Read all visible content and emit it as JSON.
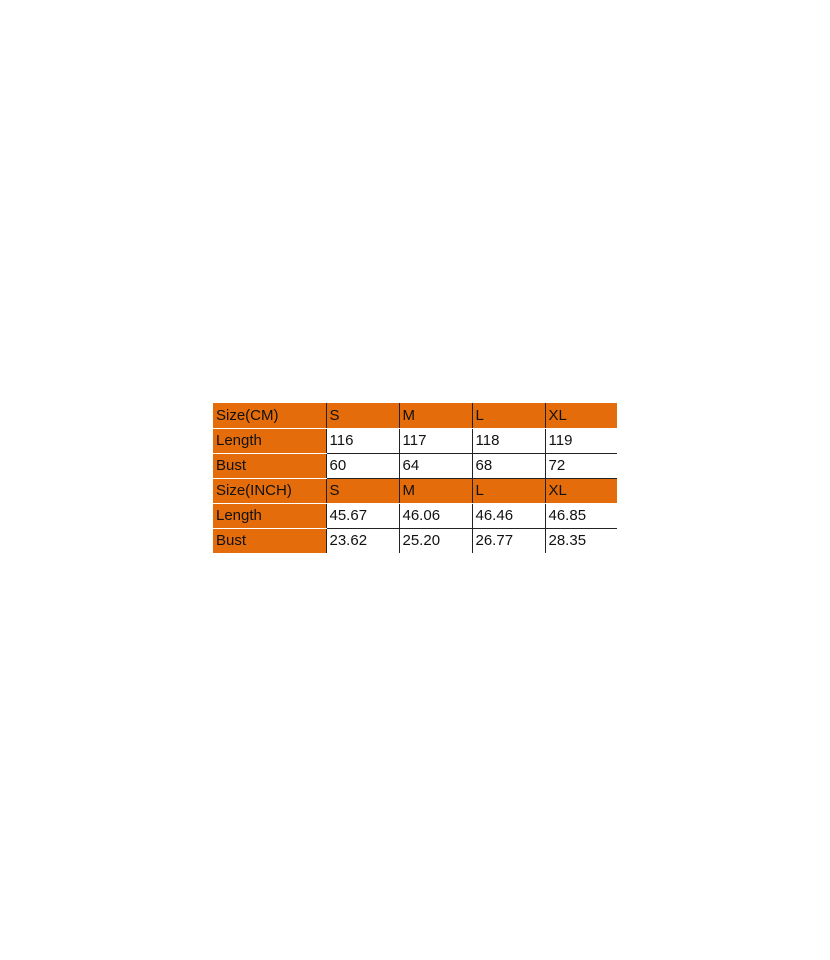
{
  "accent_color": "#E46C0A",
  "size_chart": {
    "sections": [
      {
        "header": [
          "Size(CM)",
          "S",
          "M",
          "L",
          "XL"
        ],
        "rows": [
          {
            "label": "Length",
            "values": [
              "116",
              "117",
              "118",
              "119"
            ]
          },
          {
            "label": "Bust",
            "values": [
              "60",
              "64",
              "68",
              "72"
            ]
          }
        ]
      },
      {
        "header": [
          "Size(INCH)",
          "S",
          "M",
          "L",
          "XL"
        ],
        "rows": [
          {
            "label": "Length",
            "values": [
              "45.67",
              "46.06",
              "46.46",
              "46.85"
            ]
          },
          {
            "label": "Bust",
            "values": [
              "23.62",
              "25.20",
              "26.77",
              "28.35"
            ]
          }
        ]
      }
    ]
  }
}
